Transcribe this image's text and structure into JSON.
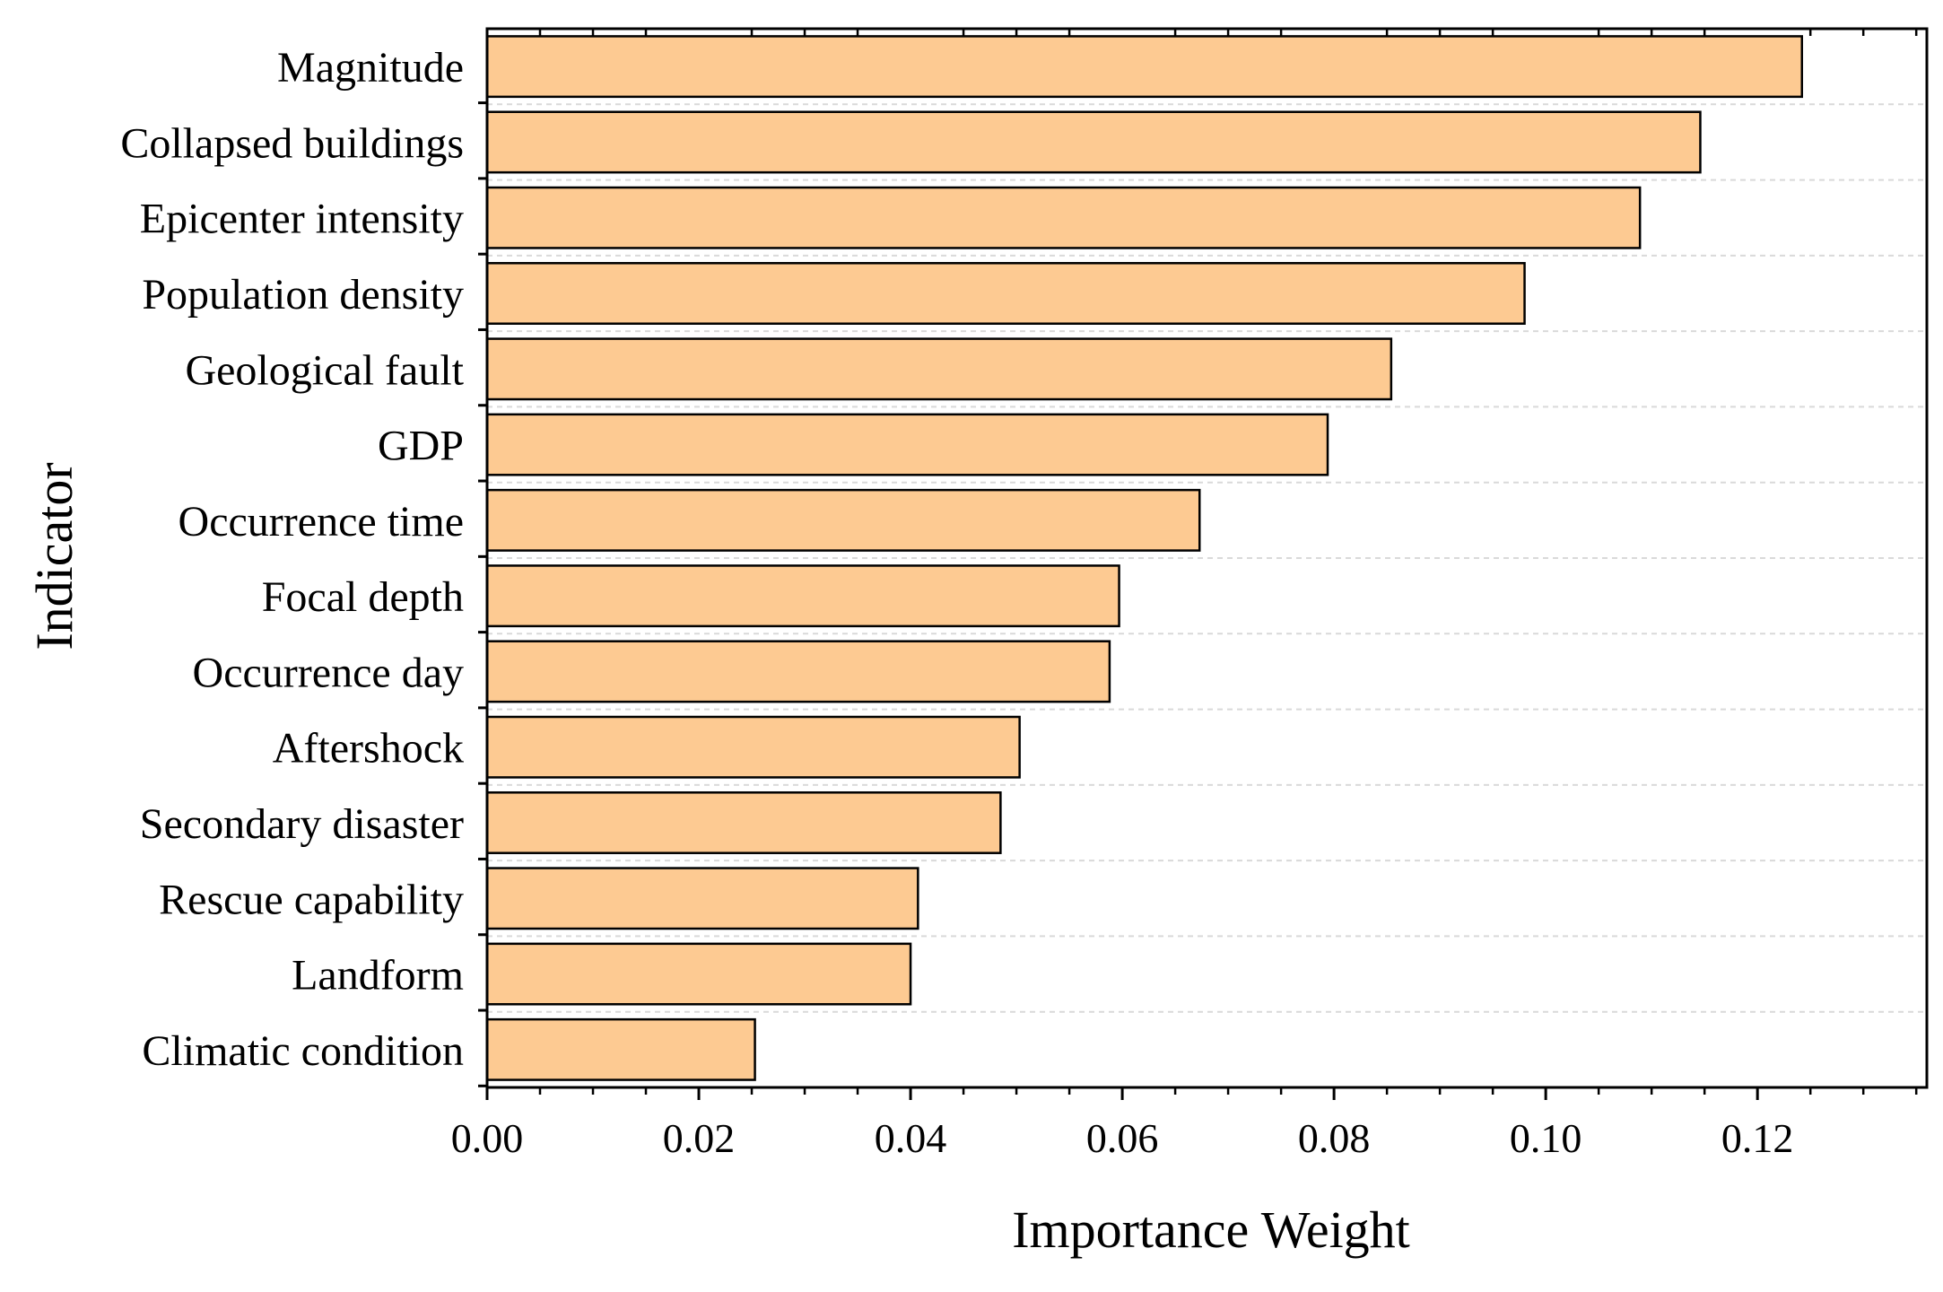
{
  "chart_data": {
    "type": "bar",
    "orientation": "horizontal",
    "title": "",
    "xlabel": "Importance Weight",
    "ylabel": "Indicator",
    "categories": [
      "Magnitude",
      "Collapsed buildings",
      "Epicenter intensity",
      "Population density",
      "Geological fault",
      "GDP",
      "Occurrence time",
      "Focal depth",
      "Occurrence day",
      "Aftershock",
      "Secondary disaster ",
      "Rescue capability",
      "Landform",
      "Climatic condition"
    ],
    "values": [
      0.1242,
      0.1146,
      0.1089,
      0.098,
      0.0854,
      0.0794,
      0.0673,
      0.0597,
      0.0588,
      0.0503,
      0.0485,
      0.0407,
      0.04,
      0.0253
    ],
    "xlim": [
      0,
      0.136
    ],
    "xticks": [
      0.0,
      0.02,
      0.04,
      0.06,
      0.08,
      0.1,
      0.12
    ],
    "xtick_labels": [
      "0.00",
      "0.02",
      "0.04",
      "0.06",
      "0.08",
      "0.10",
      "0.12"
    ],
    "grid": "horizontal dashed",
    "legend": "none",
    "colors": {
      "bar_fill": "#FDCA92",
      "bar_stroke": "#000000",
      "grid": "#D9D9D9",
      "axis": "#000000"
    }
  }
}
